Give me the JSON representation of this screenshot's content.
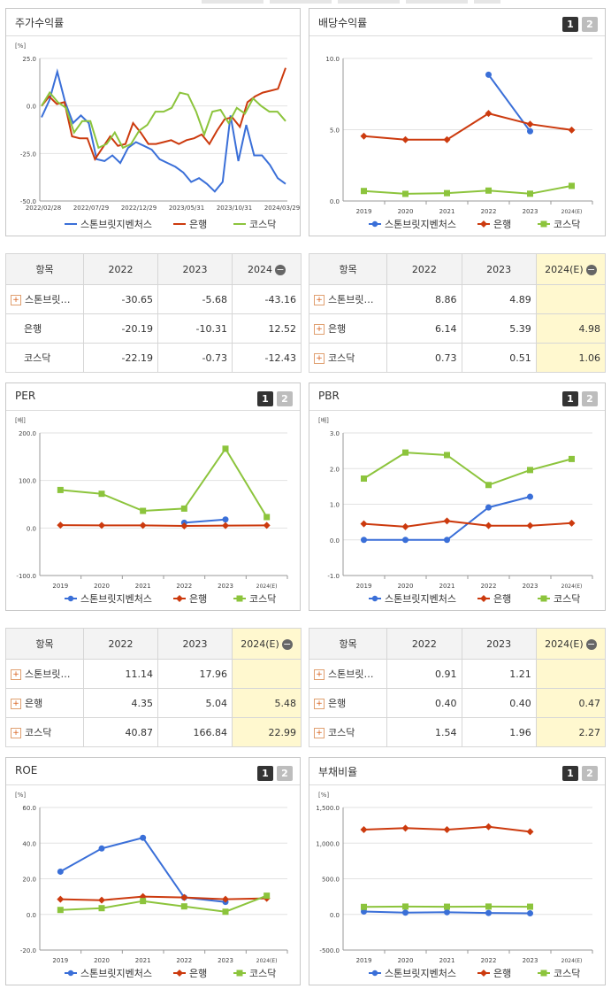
{
  "colors": {
    "s1": "#3a6fd8",
    "s2": "#cc3a0e",
    "s3": "#8cc43c"
  },
  "legend": [
    "스톤브릿지벤처스",
    "은행",
    "코스닥"
  ],
  "buttons": {
    "one": "1",
    "two": "2"
  },
  "chart_data": [
    {
      "id": "stock",
      "type": "line",
      "title": "주가수익률",
      "ylabel": "[%]",
      "ylim": [
        -50,
        25
      ],
      "yticks": [
        "25.0",
        "0.0",
        "-25.0",
        "-50.0"
      ],
      "x_labels": [
        "2022/02/28",
        "2022/07/29",
        "2022/12/29",
        "2023/05/31",
        "2023/10/31",
        "2024/03/29"
      ],
      "series": [
        {
          "name": "스톤브릿지벤처스",
          "values": [
            -6,
            3,
            18,
            2,
            -9,
            -5,
            -9,
            -28,
            -29,
            -26,
            -30,
            -22,
            -19,
            -21,
            -23,
            -28,
            -30,
            -32,
            -35,
            -40,
            -38,
            -41,
            -45,
            -40,
            -5,
            -29,
            -10,
            -26,
            -26,
            -31,
            -38,
            -41
          ]
        },
        {
          "name": "은행",
          "values": [
            0,
            5,
            1,
            2,
            -16,
            -17,
            -17,
            -28,
            -22,
            -16,
            -21,
            -20,
            -9,
            -14,
            -20,
            -20,
            -19,
            -18,
            -20,
            -18,
            -17,
            -15,
            -20,
            -13,
            -7,
            -6,
            -11,
            2,
            5,
            7,
            8,
            9,
            20
          ]
        },
        {
          "name": "코스닥",
          "values": [
            0,
            7,
            2,
            -1,
            -14,
            -8,
            -8,
            -22,
            -20,
            -14,
            -22,
            -20,
            -13,
            -10,
            -3,
            -3,
            -1,
            7,
            6,
            -3,
            -15,
            -3,
            -2,
            -9,
            -1,
            -4,
            4,
            0,
            -3,
            -3,
            -8
          ]
        }
      ]
    },
    {
      "id": "dividend",
      "type": "line",
      "title": "배당수익률",
      "ylabel": "",
      "ylim": [
        0,
        10
      ],
      "yticks": [
        "10.0",
        "5.0",
        "0.0"
      ],
      "categories": [
        "2019",
        "2020",
        "2021",
        "2022",
        "2023",
        "2024(E)"
      ],
      "series": [
        {
          "name": "스톤브릿지벤처스",
          "values": [
            null,
            null,
            null,
            8.86,
            4.89,
            null
          ]
        },
        {
          "name": "은행",
          "values": [
            4.55,
            4.3,
            4.3,
            6.14,
            5.39,
            4.98
          ]
        },
        {
          "name": "코스닥",
          "values": [
            0.7,
            0.5,
            0.55,
            0.73,
            0.51,
            1.06
          ]
        }
      ]
    },
    {
      "id": "per",
      "type": "line",
      "title": "PER",
      "ylabel": "[배]",
      "ylim": [
        -100,
        200
      ],
      "yticks": [
        "200.0",
        "100.0",
        "0.0",
        "-100.0"
      ],
      "categories": [
        "2019",
        "2020",
        "2021",
        "2022",
        "2023",
        "2024(E)"
      ],
      "series": [
        {
          "name": "스톤브릿지벤처스",
          "values": [
            null,
            null,
            null,
            11.14,
            17.96,
            null
          ]
        },
        {
          "name": "은행",
          "values": [
            6,
            5.5,
            5.5,
            4.35,
            5.04,
            5.48
          ]
        },
        {
          "name": "코스닥",
          "values": [
            80,
            72,
            36,
            40.87,
            166.84,
            22.99
          ]
        }
      ]
    },
    {
      "id": "pbr",
      "type": "line",
      "title": "PBR",
      "ylabel": "[배]",
      "ylim": [
        -1,
        3
      ],
      "yticks": [
        "3.0",
        "2.0",
        "1.0",
        "0.0",
        "-1.0"
      ],
      "categories": [
        "2019",
        "2020",
        "2021",
        "2022",
        "2023",
        "2024(E)"
      ],
      "series": [
        {
          "name": "스톤브릿지벤처스",
          "values": [
            0,
            0,
            0,
            0.91,
            1.21,
            null
          ]
        },
        {
          "name": "은행",
          "values": [
            0.45,
            0.37,
            0.53,
            0.4,
            0.4,
            0.47
          ]
        },
        {
          "name": "코스닥",
          "values": [
            1.72,
            2.45,
            2.38,
            1.54,
            1.96,
            2.27
          ]
        }
      ]
    },
    {
      "id": "roe",
      "type": "line",
      "title": "ROE",
      "ylabel": "[%]",
      "ylim": [
        -20,
        60
      ],
      "yticks": [
        "60.0",
        "40.0",
        "20.0",
        "0.0",
        "-20.0"
      ],
      "categories": [
        "2019",
        "2020",
        "2021",
        "2022",
        "2023",
        "2024(E)"
      ],
      "series": [
        {
          "name": "스톤브릿지벤처스",
          "values": [
            24,
            37,
            43,
            9.5,
            7,
            null
          ]
        },
        {
          "name": "은행",
          "values": [
            8.5,
            8,
            10,
            9.5,
            8.5,
            9
          ]
        },
        {
          "name": "코스닥",
          "values": [
            2.5,
            3.5,
            7.5,
            4.5,
            1.5,
            10.5
          ]
        }
      ]
    },
    {
      "id": "debt",
      "type": "line",
      "title": "부채비율",
      "ylabel": "[%]",
      "ylim": [
        -500,
        1500
      ],
      "yticks": [
        "1,500.0",
        "1,000.0",
        "500.0",
        "0.0",
        "-500.0"
      ],
      "categories": [
        "2019",
        "2020",
        "2021",
        "2022",
        "2023",
        "2024(E)"
      ],
      "series": [
        {
          "name": "스톤브릿지벤처스",
          "values": [
            40,
            25,
            30,
            20,
            15,
            null
          ]
        },
        {
          "name": "은행",
          "values": [
            1190,
            1210,
            1190,
            1230,
            1160,
            null
          ]
        },
        {
          "name": "코스닥",
          "values": [
            105,
            110,
            108,
            110,
            108,
            null
          ]
        }
      ]
    }
  ],
  "tables": [
    {
      "id": "t_stock",
      "header": [
        "항목",
        "2022",
        "2023",
        "2024"
      ],
      "hl": false,
      "rows": [
        {
          "name": "스톤브릿…",
          "plus": true,
          "values": [
            "-30.65",
            "-5.68",
            "-43.16"
          ]
        },
        {
          "name": "은행",
          "plus": false,
          "values": [
            "-20.19",
            "-10.31",
            "12.52"
          ]
        },
        {
          "name": "코스닥",
          "plus": false,
          "values": [
            "-22.19",
            "-0.73",
            "-12.43"
          ]
        }
      ]
    },
    {
      "id": "t_div",
      "header": [
        "항목",
        "2022",
        "2023",
        "2024(E)"
      ],
      "hl": true,
      "rows": [
        {
          "name": "스톤브릿…",
          "plus": true,
          "values": [
            "8.86",
            "4.89",
            ""
          ]
        },
        {
          "name": "은행",
          "plus": true,
          "values": [
            "6.14",
            "5.39",
            "4.98"
          ]
        },
        {
          "name": "코스닥",
          "plus": true,
          "values": [
            "0.73",
            "0.51",
            "1.06"
          ]
        }
      ]
    },
    {
      "id": "t_per",
      "header": [
        "항목",
        "2022",
        "2023",
        "2024(E)"
      ],
      "hl": true,
      "rows": [
        {
          "name": "스톤브릿…",
          "plus": true,
          "values": [
            "11.14",
            "17.96",
            ""
          ]
        },
        {
          "name": "은행",
          "plus": true,
          "values": [
            "4.35",
            "5.04",
            "5.48"
          ]
        },
        {
          "name": "코스닥",
          "plus": true,
          "values": [
            "40.87",
            "166.84",
            "22.99"
          ]
        }
      ]
    },
    {
      "id": "t_pbr",
      "header": [
        "항목",
        "2022",
        "2023",
        "2024(E)"
      ],
      "hl": true,
      "rows": [
        {
          "name": "스톤브릿…",
          "plus": true,
          "values": [
            "0.91",
            "1.21",
            ""
          ]
        },
        {
          "name": "은행",
          "plus": true,
          "values": [
            "0.40",
            "0.40",
            "0.47"
          ]
        },
        {
          "name": "코스닥",
          "plus": true,
          "values": [
            "1.54",
            "1.96",
            "2.27"
          ]
        }
      ]
    }
  ]
}
